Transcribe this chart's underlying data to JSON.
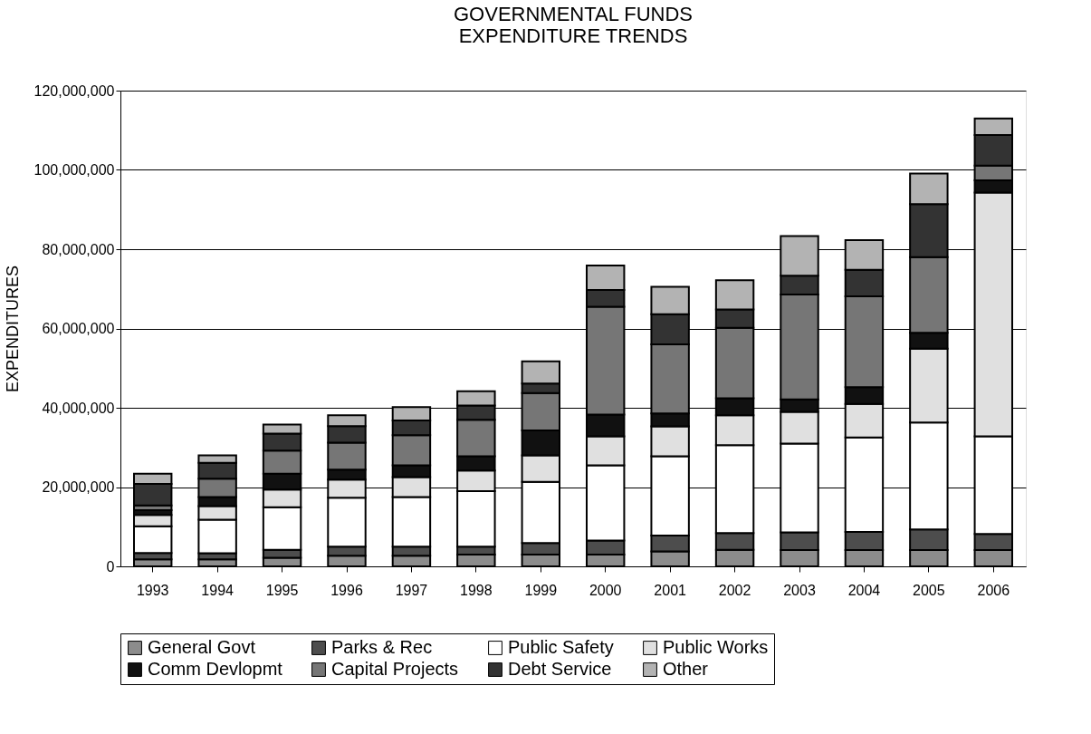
{
  "chart_data": {
    "type": "bar",
    "title": [
      "GOVERNMENTAL FUNDS",
      "EXPENDITURE TRENDS"
    ],
    "ylabel": "EXPENDITURES",
    "categories": [
      "1993",
      "1994",
      "1995",
      "1996",
      "1997",
      "1998",
      "1999",
      "2000",
      "2001",
      "2002",
      "2003",
      "2004",
      "2005",
      "2006"
    ],
    "stacked": true,
    "series": [
      {
        "name": "General Govt",
        "color": "#8c8c8c",
        "values": [
          1800000,
          1800000,
          2200000,
          2700000,
          2700000,
          3000000,
          3000000,
          3000000,
          3800000,
          4200000,
          4100000,
          4100000,
          4100000,
          4100000
        ]
      },
      {
        "name": "Parks & Rec",
        "color": "#4d4d4d",
        "values": [
          1600000,
          1500000,
          2000000,
          2300000,
          2300000,
          2000000,
          2900000,
          3500000,
          4000000,
          4200000,
          4500000,
          4600000,
          5200000,
          4100000
        ]
      },
      {
        "name": "Public Safety",
        "color": "#ffffff",
        "values": [
          6700000,
          8500000,
          10700000,
          12300000,
          12500000,
          14000000,
          15400000,
          19000000,
          20000000,
          22200000,
          22400000,
          23800000,
          27000000,
          24600000
        ]
      },
      {
        "name": "Public Works",
        "color": "#e0e0e0",
        "values": [
          2900000,
          3400000,
          4500000,
          4600000,
          5000000,
          5200000,
          6700000,
          7300000,
          7500000,
          7500000,
          8000000,
          8500000,
          18600000,
          61500000
        ]
      },
      {
        "name": "Comm Devlopmt",
        "color": "#111111",
        "values": [
          1200000,
          2300000,
          4000000,
          2500000,
          3000000,
          3600000,
          6300000,
          5500000,
          3300000,
          4300000,
          3100000,
          4200000,
          4000000,
          3100000
        ]
      },
      {
        "name": "Capital Projects",
        "color": "#767676",
        "values": [
          1200000,
          4600000,
          5800000,
          6800000,
          7600000,
          9200000,
          9400000,
          27200000,
          17400000,
          17800000,
          26500000,
          22900000,
          19100000,
          3700000
        ]
      },
      {
        "name": "Debt Service",
        "color": "#333333",
        "values": [
          5400000,
          4000000,
          4300000,
          4200000,
          3700000,
          3600000,
          2400000,
          4200000,
          7600000,
          4600000,
          4700000,
          6700000,
          13400000,
          7700000
        ]
      },
      {
        "name": "Other",
        "color": "#b3b3b3",
        "values": [
          2600000,
          1900000,
          2300000,
          2700000,
          3400000,
          3600000,
          5600000,
          6200000,
          6900000,
          7400000,
          10000000,
          7500000,
          7700000,
          4200000
        ]
      }
    ],
    "ylim": [
      0,
      120000000
    ],
    "yticks": [
      0,
      {
        "value": 20000000,
        "label": "20,000,000"
      },
      {
        "value": 40000000,
        "label": "40,000,000"
      },
      {
        "value": 60000000,
        "label": "60,000,000"
      },
      {
        "value": 80000000,
        "label": "80,000,000"
      },
      {
        "value": 100000000,
        "label": "100,000,000"
      },
      {
        "value": 120000000,
        "label": "120,000,000"
      }
    ],
    "grid": "y",
    "legend": "bottom"
  }
}
